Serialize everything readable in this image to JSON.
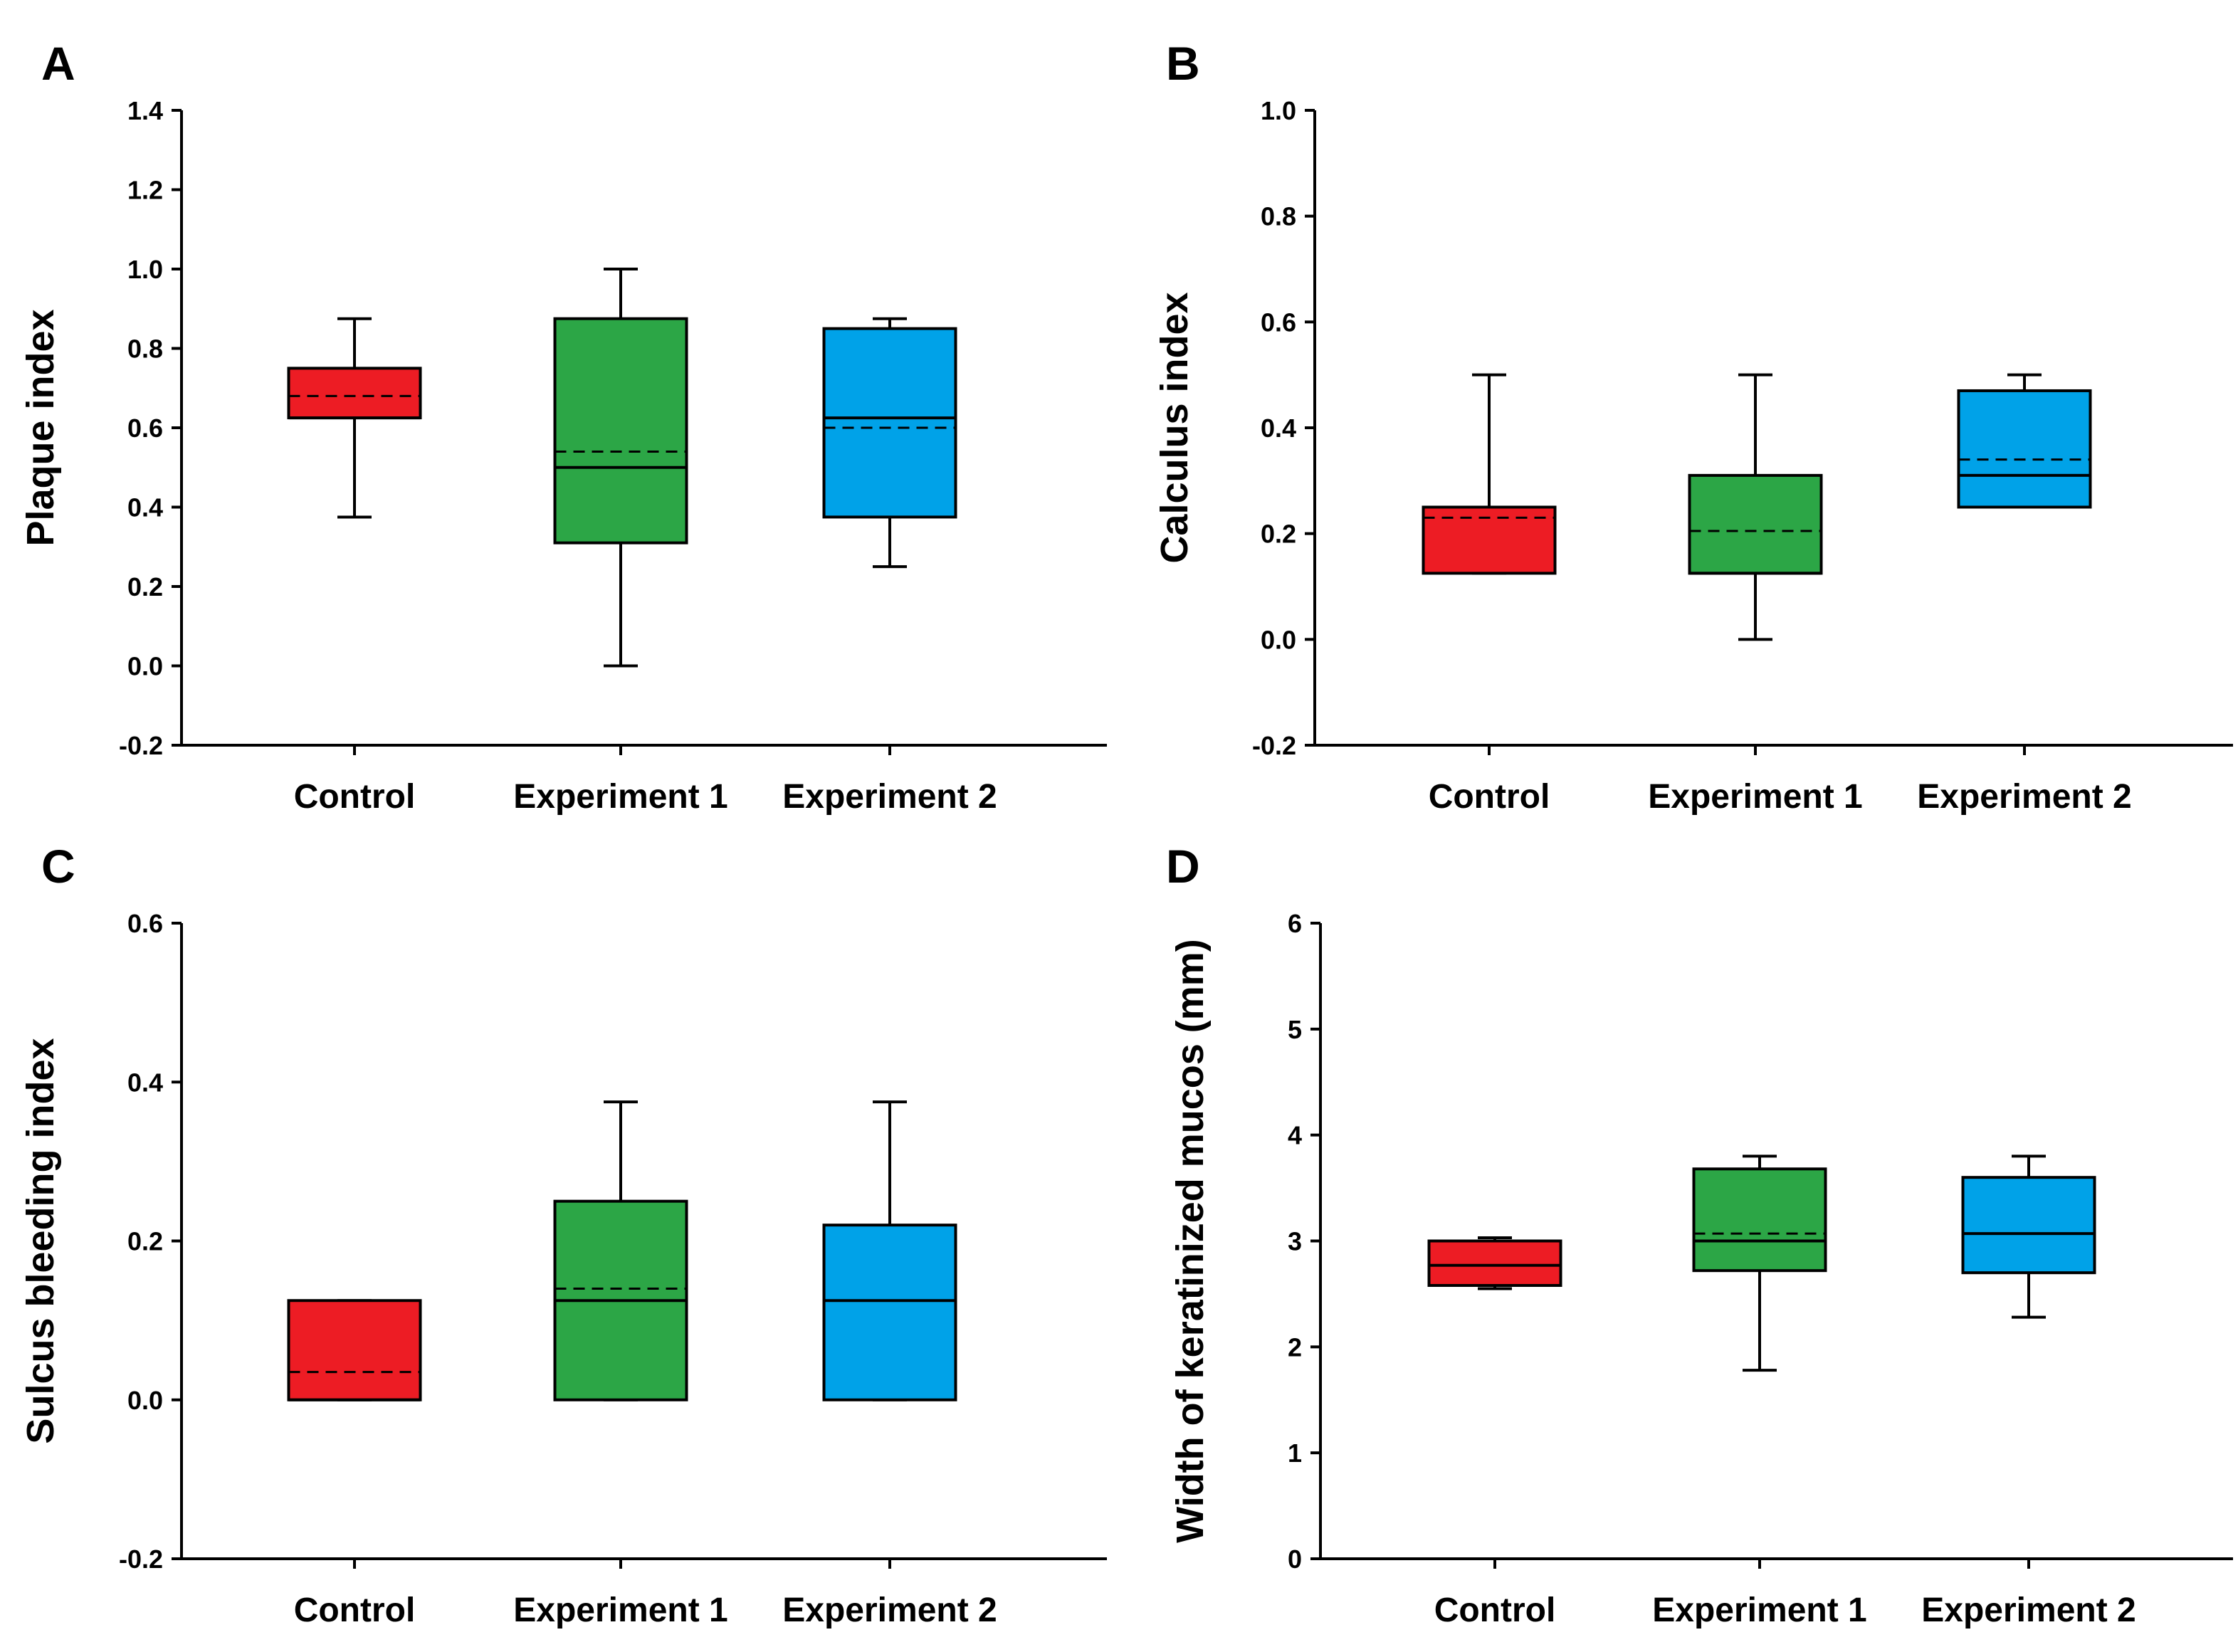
{
  "figure": {
    "colors": {
      "Control": "#ed1c24",
      "Experiment 1": "#2ca646",
      "Experiment 2": "#00a2e8",
      "axis": "#000000"
    }
  },
  "chart_data": [
    {
      "panel": "A",
      "type": "boxplot",
      "ylabel": "Plaque index",
      "xlabel": "",
      "ylim": [
        -0.2,
        1.4
      ],
      "yticks": [
        -0.2,
        0.0,
        0.2,
        0.4,
        0.6,
        0.8,
        1.0,
        1.2,
        1.4
      ],
      "tick_labels": [
        "-0.2",
        "0.0",
        "0.2",
        "0.4",
        "0.6",
        "0.8",
        "1.0",
        "1.2",
        "1.4"
      ],
      "categories": [
        "Control",
        "Experiment 1",
        "Experiment 2"
      ],
      "boxes": [
        {
          "name": "Control",
          "whisker_low": 0.375,
          "q1": 0.625,
          "median": 0.625,
          "q3": 0.75,
          "whisker_high": 0.875,
          "mean": 0.68
        },
        {
          "name": "Experiment 1",
          "whisker_low": 0.0,
          "q1": 0.31,
          "median": 0.5,
          "q3": 0.875,
          "whisker_high": 1.0,
          "mean": 0.54
        },
        {
          "name": "Experiment 2",
          "whisker_low": 0.25,
          "q1": 0.375,
          "median": 0.625,
          "q3": 0.85,
          "whisker_high": 0.875,
          "mean": 0.6
        }
      ]
    },
    {
      "panel": "B",
      "type": "boxplot",
      "ylabel": "Calculus index",
      "xlabel": "",
      "ylim": [
        -0.2,
        1.0
      ],
      "yticks": [
        -0.2,
        0.0,
        0.2,
        0.4,
        0.6,
        0.8,
        1.0
      ],
      "tick_labels": [
        "-0.2",
        "0.0",
        "0.2",
        "0.4",
        "0.6",
        "0.8",
        "1.0"
      ],
      "categories": [
        "Control",
        "Experiment 1",
        "Experiment 2"
      ],
      "boxes": [
        {
          "name": "Control",
          "whisker_low": 0.125,
          "q1": 0.125,
          "median": 0.25,
          "q3": 0.25,
          "whisker_high": 0.5,
          "mean": 0.23
        },
        {
          "name": "Experiment 1",
          "whisker_low": 0.0,
          "q1": 0.125,
          "median": 0.125,
          "q3": 0.31,
          "whisker_high": 0.5,
          "mean": 0.205
        },
        {
          "name": "Experiment 2",
          "whisker_low": 0.25,
          "q1": 0.25,
          "median": 0.31,
          "q3": 0.47,
          "whisker_high": 0.5,
          "mean": 0.34
        }
      ]
    },
    {
      "panel": "C",
      "type": "boxplot",
      "ylabel": "Sulcus bleeding index",
      "xlabel": "",
      "ylim": [
        -0.2,
        0.6
      ],
      "yticks": [
        -0.2,
        0.0,
        0.2,
        0.4,
        0.6
      ],
      "tick_labels": [
        "-0.2",
        "0.0",
        "0.2",
        "0.4",
        "0.6"
      ],
      "categories": [
        "Control",
        "Experiment 1",
        "Experiment 2"
      ],
      "boxes": [
        {
          "name": "Control",
          "whisker_low": 0.0,
          "q1": 0.0,
          "median": 0.0,
          "q3": 0.125,
          "whisker_high": 0.125,
          "mean": 0.035
        },
        {
          "name": "Experiment 1",
          "whisker_low": 0.0,
          "q1": 0.0,
          "median": 0.125,
          "q3": 0.25,
          "whisker_high": 0.375,
          "mean": 0.14
        },
        {
          "name": "Experiment 2",
          "whisker_low": 0.0,
          "q1": 0.0,
          "median": 0.125,
          "q3": 0.22,
          "whisker_high": 0.375,
          "mean": 0.125
        }
      ]
    },
    {
      "panel": "D",
      "type": "boxplot",
      "ylabel": "Width of keratinized mucos (mm)",
      "xlabel": "",
      "ylim": [
        0,
        6
      ],
      "yticks": [
        0,
        1,
        2,
        3,
        4,
        5,
        6
      ],
      "tick_labels": [
        "0",
        "1",
        "2",
        "3",
        "4",
        "5",
        "6"
      ],
      "categories": [
        "Control",
        "Experiment 1",
        "Experiment 2"
      ],
      "boxes": [
        {
          "name": "Control",
          "whisker_low": 2.55,
          "q1": 2.58,
          "median": 2.77,
          "q3": 3.0,
          "whisker_high": 3.03,
          "mean": 2.77
        },
        {
          "name": "Experiment 1",
          "whisker_low": 1.78,
          "q1": 2.72,
          "median": 3.0,
          "q3": 3.68,
          "whisker_high": 3.8,
          "mean": 3.07
        },
        {
          "name": "Experiment 2",
          "whisker_low": 2.28,
          "q1": 2.7,
          "median": 3.07,
          "q3": 3.6,
          "whisker_high": 3.8,
          "mean": 3.07
        }
      ]
    }
  ]
}
